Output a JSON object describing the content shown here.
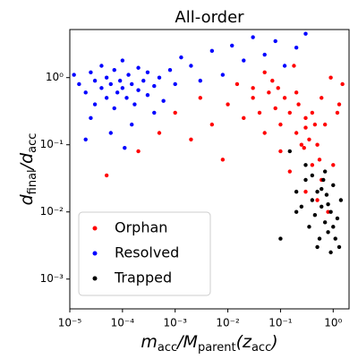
{
  "chart_data": {
    "type": "scatter",
    "title": "All-order",
    "xlabel": [
      "m",
      "acc",
      "/M",
      "parent",
      "(z",
      "acc",
      ")"
    ],
    "ylabel": [
      "d",
      "final",
      "/d",
      "acc"
    ],
    "xscale": "log",
    "yscale": "log",
    "xlim": [
      1e-05,
      2
    ],
    "ylim": [
      0.00036,
      5.2
    ],
    "xticks": [
      {
        "value": 1e-05,
        "label": "10⁻⁵"
      },
      {
        "value": 0.0001,
        "label": "10⁻⁴"
      },
      {
        "value": 0.001,
        "label": "10⁻³"
      },
      {
        "value": 0.01,
        "label": "10⁻²"
      },
      {
        "value": 0.1,
        "label": "10⁻¹"
      },
      {
        "value": 1,
        "label": "10⁰"
      }
    ],
    "yticks": [
      {
        "value": 0.001,
        "label": "10⁻³"
      },
      {
        "value": 0.01,
        "label": "10⁻²"
      },
      {
        "value": 0.1,
        "label": "10⁻¹"
      },
      {
        "value": 1,
        "label": "10⁰"
      }
    ],
    "legend_loc": "lower left",
    "series": [
      {
        "name": "Orphan",
        "color": "#ff0000",
        "x": [
          5e-05,
          0.0002,
          0.0005,
          0.001,
          0.002,
          0.003,
          0.005,
          0.008,
          0.01,
          0.015,
          0.02,
          0.03,
          0.04,
          0.05,
          0.06,
          0.08,
          0.1,
          0.1,
          0.12,
          0.15,
          0.15,
          0.2,
          0.2,
          0.25,
          0.3,
          0.3,
          0.35,
          0.4,
          0.4,
          0.5,
          0.5,
          0.6,
          0.7,
          0.8,
          1.0,
          1.2,
          1.5,
          0.05,
          0.07,
          0.09,
          0.18,
          0.22,
          0.28,
          0.45,
          0.55,
          0.9,
          0.03,
          0.6,
          0.3,
          1.3
        ],
        "values": [
          0.035,
          0.08,
          0.15,
          0.3,
          0.12,
          0.5,
          0.2,
          0.06,
          0.4,
          0.8,
          0.25,
          0.5,
          0.3,
          0.15,
          0.6,
          0.35,
          0.2,
          0.08,
          0.5,
          0.3,
          0.04,
          0.15,
          0.6,
          0.1,
          0.25,
          0.02,
          0.12,
          0.05,
          0.3,
          0.015,
          0.1,
          0.03,
          0.2,
          0.01,
          0.05,
          0.3,
          0.8,
          1.2,
          0.9,
          0.7,
          1.5,
          0.4,
          0.09,
          0.2,
          0.06,
          1.0,
          0.7,
          0.5,
          0.18,
          0.4
        ]
      },
      {
        "name": "Resolved",
        "color": "#0000ff",
        "x": [
          1.2e-05,
          1.5e-05,
          2e-05,
          2.5e-05,
          3e-05,
          3e-05,
          4e-05,
          4e-05,
          5e-05,
          5e-05,
          6e-05,
          7e-05,
          7e-05,
          8e-05,
          9e-05,
          0.0001,
          0.0001,
          0.00012,
          0.00013,
          0.00015,
          0.00017,
          0.0002,
          0.0002,
          0.00025,
          0.0003,
          0.0003,
          0.0004,
          0.0005,
          0.0006,
          0.0008,
          0.001,
          0.0013,
          0.002,
          0.003,
          0.005,
          0.008,
          0.012,
          0.02,
          0.03,
          0.05,
          0.08,
          0.12,
          0.2,
          0.3,
          2.5e-05,
          6e-05,
          0.00015,
          0.0004,
          2e-05,
          0.00011
        ],
        "values": [
          1.1,
          0.8,
          0.6,
          1.2,
          0.9,
          0.4,
          0.7,
          1.5,
          0.5,
          1.0,
          0.8,
          0.35,
          1.3,
          0.6,
          0.9,
          0.7,
          1.8,
          0.5,
          1.1,
          0.8,
          0.4,
          0.65,
          1.4,
          0.9,
          0.55,
          1.2,
          0.75,
          1.0,
          0.45,
          1.3,
          0.8,
          2.0,
          1.5,
          0.9,
          2.5,
          1.1,
          3.0,
          1.8,
          4.0,
          2.2,
          3.5,
          1.5,
          2.8,
          4.5,
          0.25,
          0.15,
          0.2,
          0.3,
          0.12,
          0.09
        ]
      },
      {
        "name": "Trapped",
        "color": "#000000",
        "x": [
          0.1,
          0.15,
          0.2,
          0.25,
          0.3,
          0.35,
          0.4,
          0.45,
          0.5,
          0.55,
          0.6,
          0.65,
          0.7,
          0.75,
          0.8,
          0.9,
          1.0,
          1.1,
          1.2,
          1.4,
          0.3,
          0.5,
          0.7,
          0.9,
          0.6,
          0.8,
          1.0,
          0.4,
          0.2,
          1.3
        ],
        "values": [
          0.004,
          0.08,
          0.02,
          0.012,
          0.03,
          0.006,
          0.015,
          0.009,
          0.02,
          0.004,
          0.012,
          0.03,
          0.007,
          0.018,
          0.005,
          0.01,
          0.025,
          0.004,
          0.008,
          0.015,
          0.05,
          0.003,
          0.04,
          0.0025,
          0.022,
          0.013,
          0.006,
          0.035,
          0.01,
          0.003
        ]
      }
    ]
  }
}
